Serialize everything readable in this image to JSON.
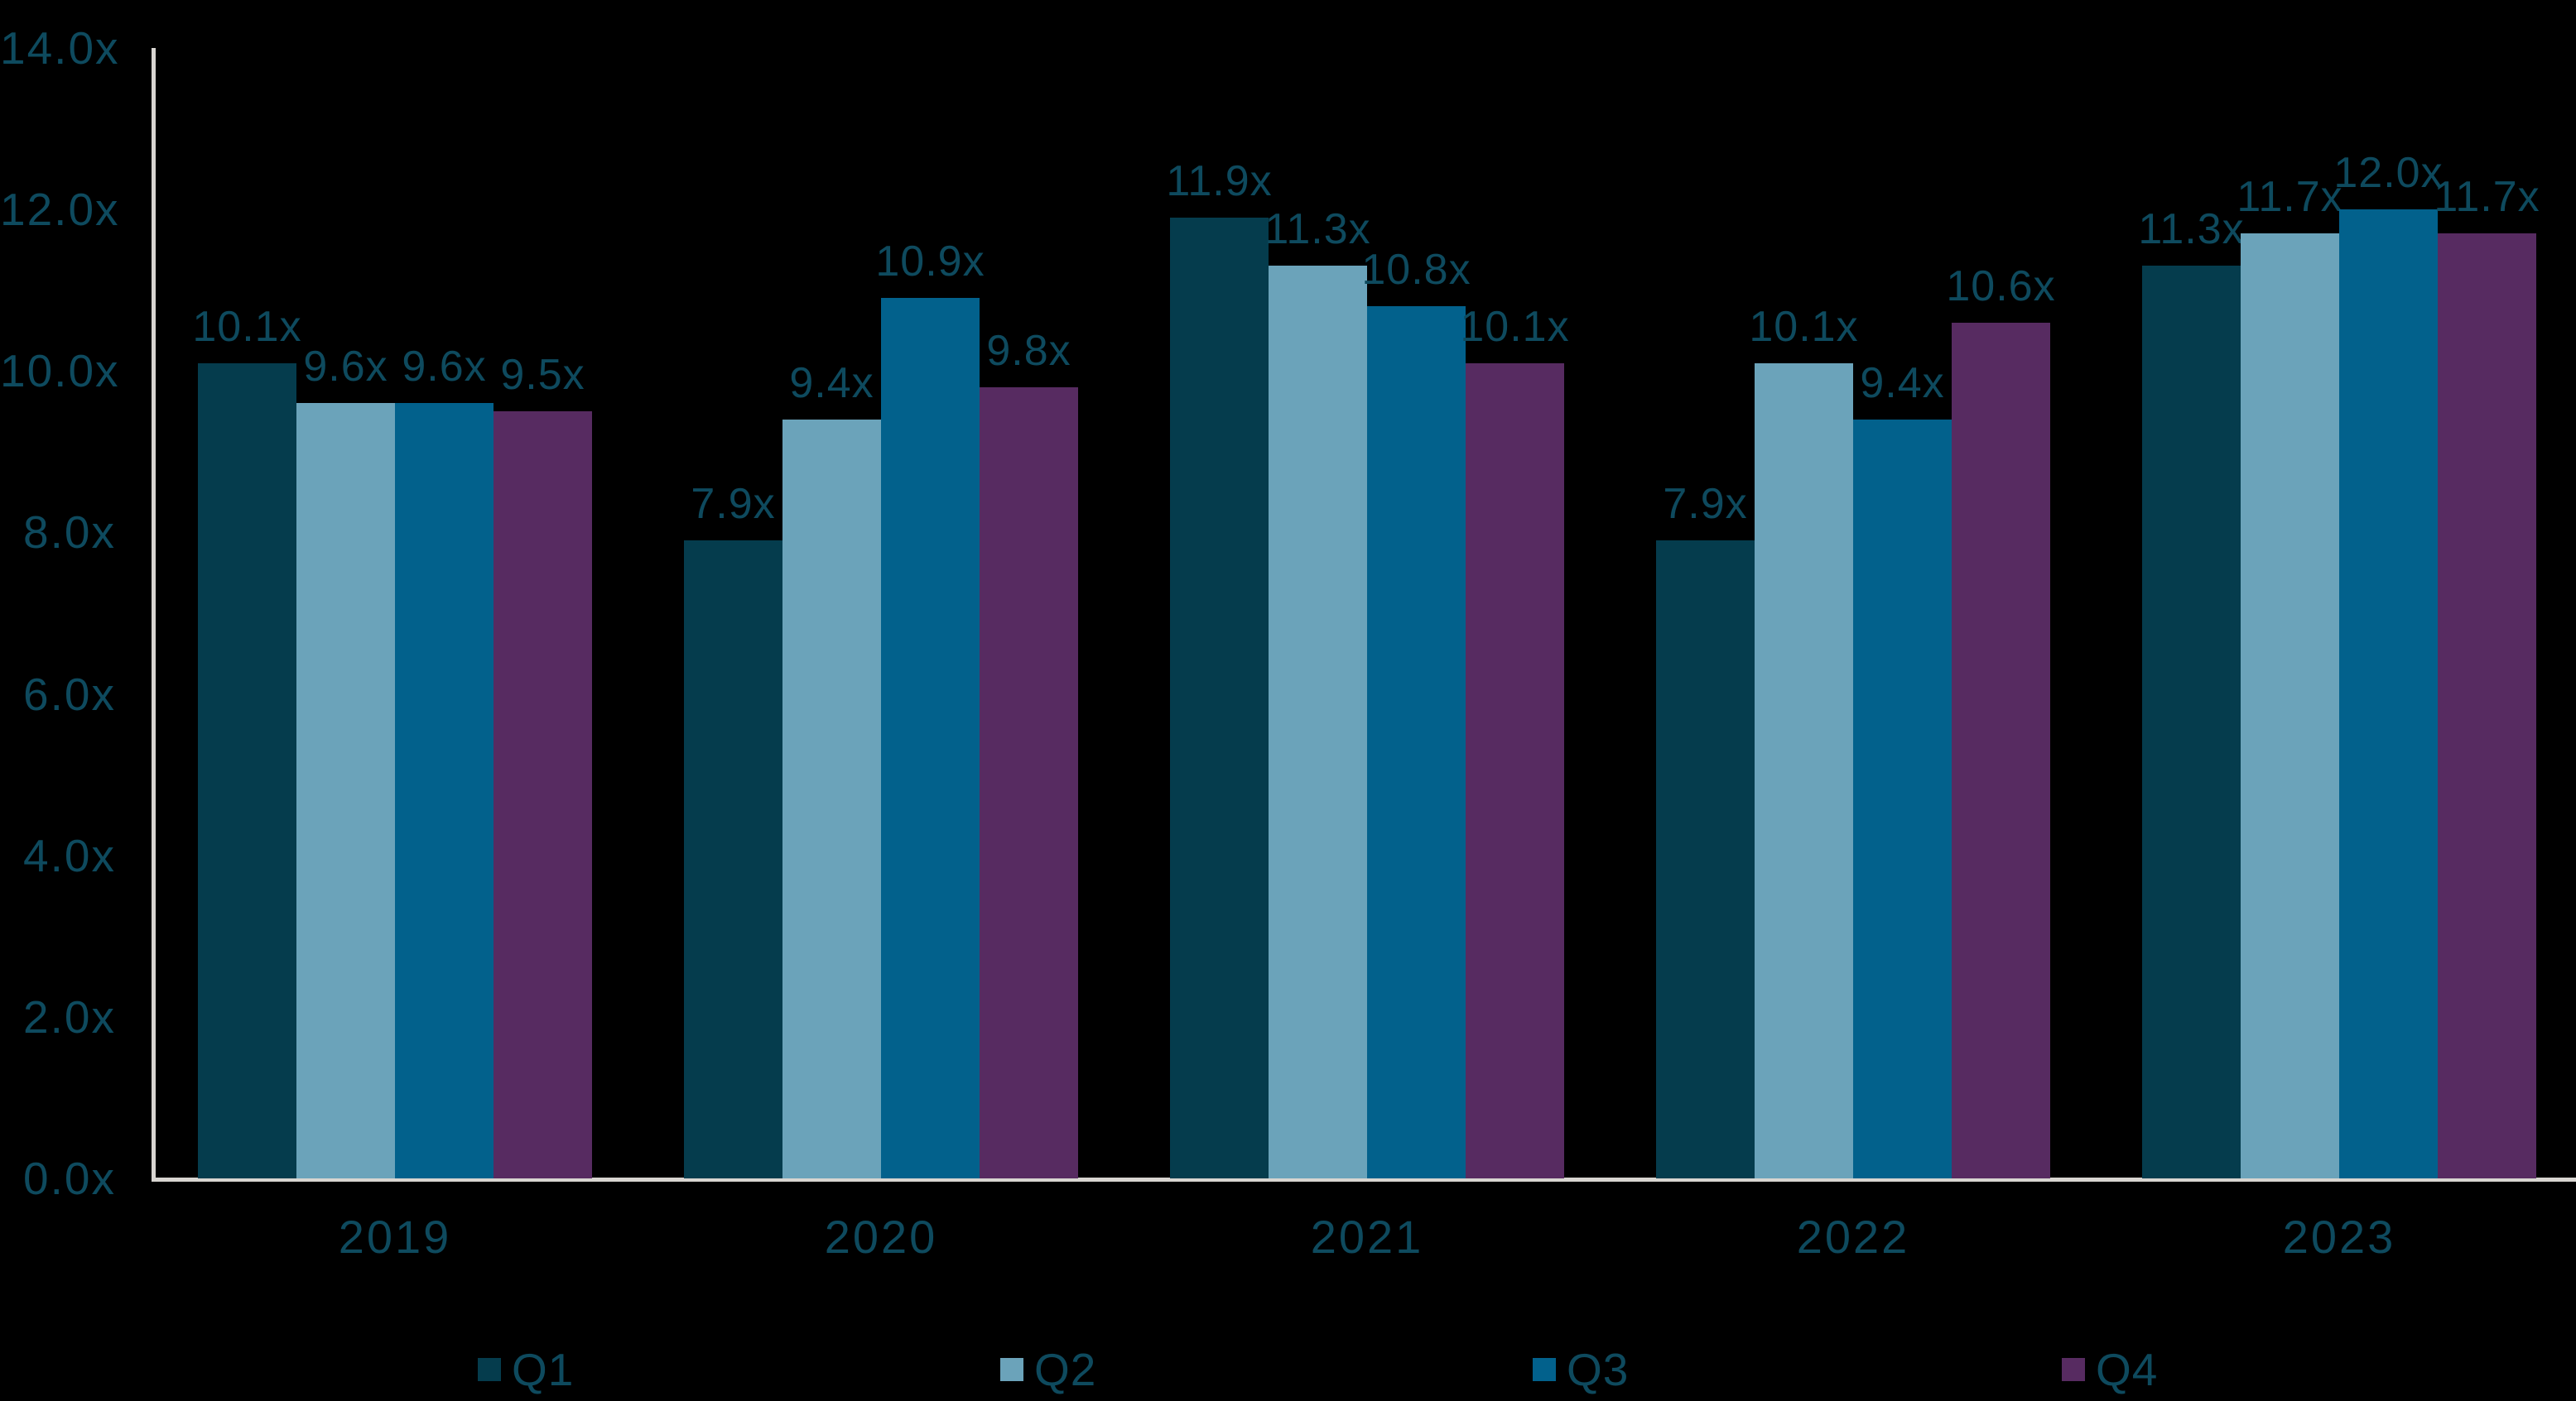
{
  "chart_data": {
    "type": "bar",
    "categories": [
      "2019",
      "2020",
      "2021",
      "2022",
      "2023"
    ],
    "series": [
      {
        "name": "Q1",
        "color": "#053C4D",
        "values": [
          10.1,
          7.9,
          11.9,
          7.9,
          11.3
        ]
      },
      {
        "name": "Q2",
        "color": "#6BA3BA",
        "values": [
          9.6,
          9.4,
          11.3,
          10.1,
          11.7
        ]
      },
      {
        "name": "Q3",
        "color": "#02618C",
        "values": [
          9.6,
          10.9,
          10.8,
          9.4,
          12.0
        ]
      },
      {
        "name": "Q4",
        "color": "#572B61",
        "values": [
          9.5,
          9.8,
          10.1,
          10.6,
          11.7
        ]
      }
    ],
    "value_suffix": "x",
    "bar_labels": [
      [
        "10.1x",
        "9.6x",
        "9.6x",
        "9.5x"
      ],
      [
        "7.9x",
        "9.4x",
        "10.9x",
        "9.8x"
      ],
      [
        "11.9x",
        "11.3x",
        "10.8x",
        "10.1x"
      ],
      [
        "7.9x",
        "10.1x",
        "9.4x",
        "10.6x"
      ],
      [
        "11.3x",
        "11.7x",
        "12.0x",
        "11.7x"
      ]
    ],
    "y_ticks": [
      "14.0x",
      "12.0x",
      "10.0x",
      "8.0x",
      "6.0x",
      "4.0x",
      "2.0x",
      "0.0x"
    ],
    "ylim": [
      0,
      14
    ],
    "grid": false,
    "legend_position": "bottom",
    "legend_labels": [
      "Q1",
      "Q2",
      "Q3",
      "Q4"
    ]
  },
  "colors": {
    "background": "#000000",
    "axis_line": "#D8D5D1",
    "text": "#0E4A5E"
  }
}
